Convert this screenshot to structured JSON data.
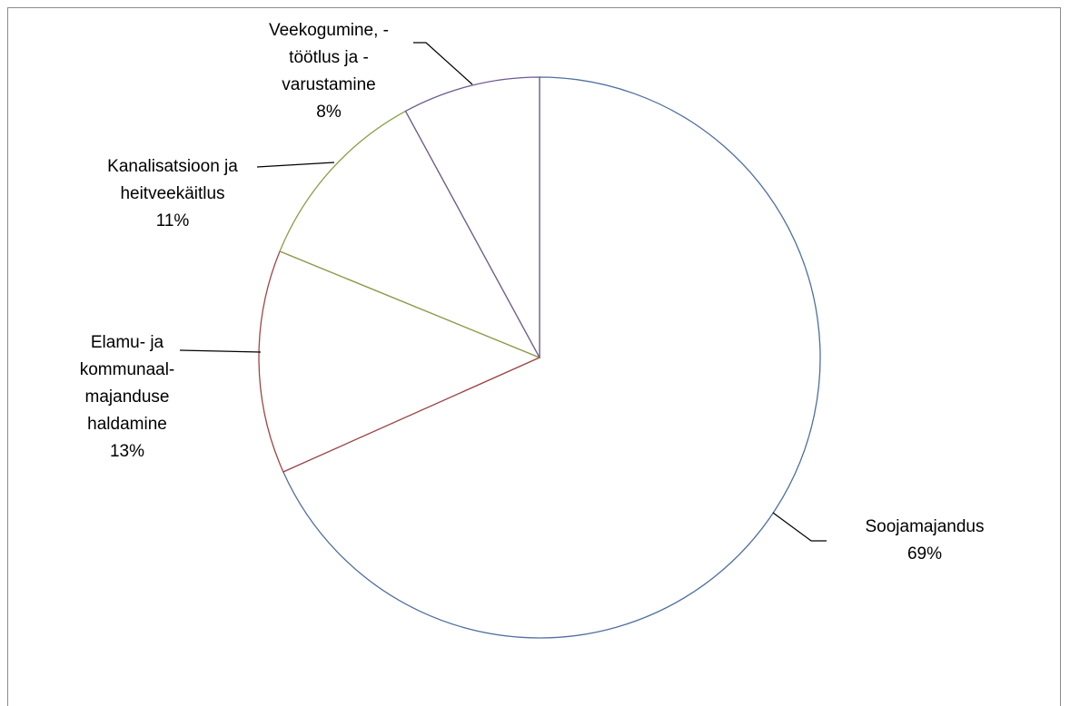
{
  "chart_data": {
    "type": "pie",
    "title": "",
    "slices": [
      {
        "label_lines": [
          "Soojamajandus"
        ],
        "percent_label": "69%",
        "value": 69,
        "color": "#4f6fa0"
      },
      {
        "label_lines": [
          "Elamu- ja",
          "kommunaal-",
          "majanduse",
          "haldamine"
        ],
        "percent_label": "13%",
        "value": 13,
        "color": "#a04645"
      },
      {
        "label_lines": [
          "Kanalisatsioon ja",
          "heitveekäitlus"
        ],
        "percent_label": "11%",
        "value": 11,
        "color": "#87a046"
      },
      {
        "label_lines": [
          "Veekogumine, -",
          "töötlus ja -",
          "varustamine"
        ],
        "percent_label": "8%",
        "value": 8,
        "color": "#6e5a90"
      }
    ],
    "start_direction": "12 o'clock",
    "direction": "clockwise",
    "fill": "#ffffff",
    "label_color": "#000000",
    "leader_color": "#000000",
    "legend": "none"
  }
}
